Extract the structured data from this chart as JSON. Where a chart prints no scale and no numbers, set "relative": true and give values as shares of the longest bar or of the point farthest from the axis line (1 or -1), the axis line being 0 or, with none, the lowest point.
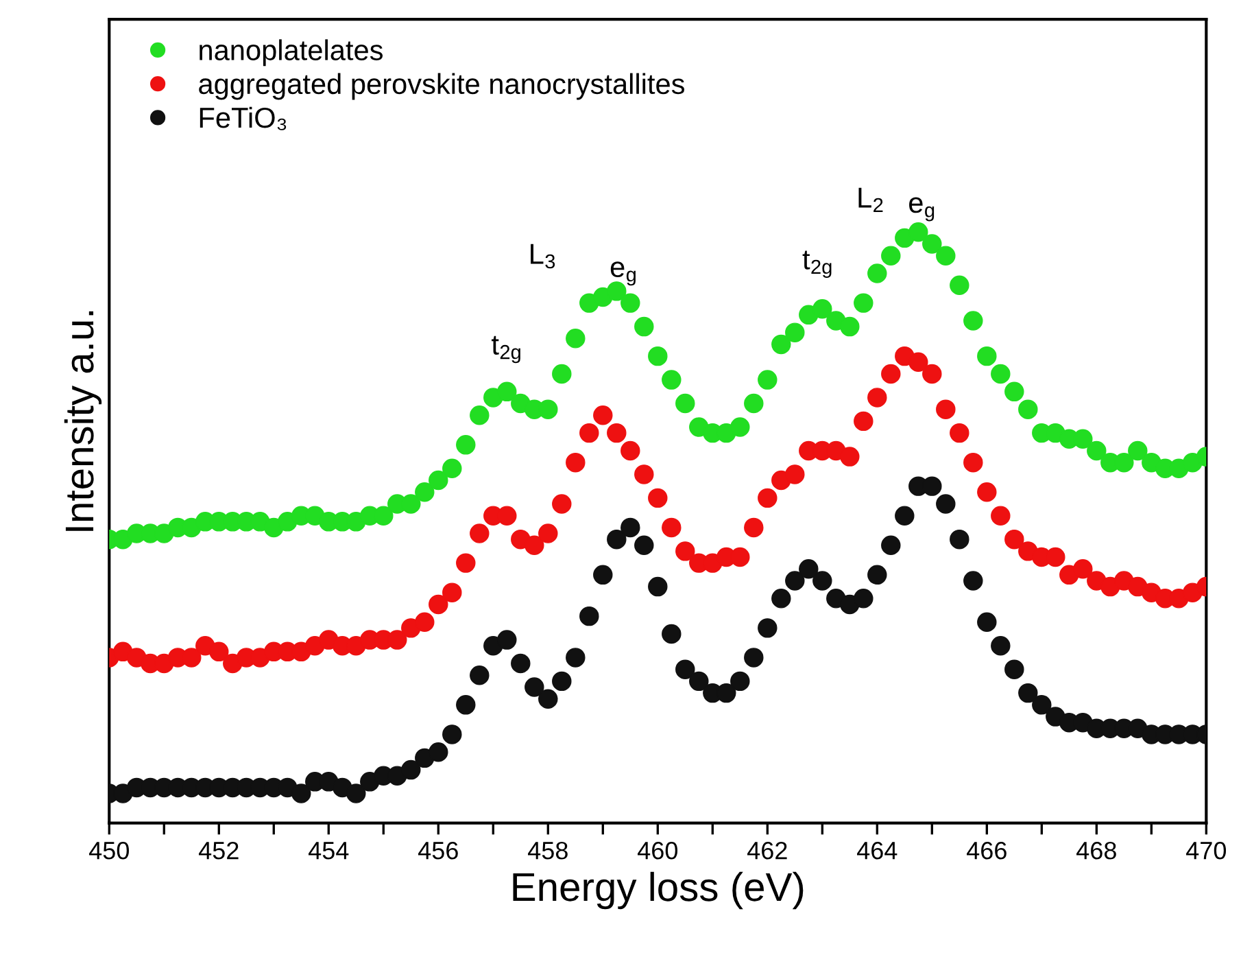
{
  "chart_data": {
    "type": "scatter",
    "relative": true,
    "xlabel": "Energy loss (eV)",
    "ylabel": "Intensity a.u.",
    "xlim": [
      450,
      470
    ],
    "xticks": [
      450,
      {
        "value": 451,
        "label": null
      },
      452,
      {
        "value": 453,
        "label": null
      },
      454,
      {
        "value": 455,
        "label": null
      },
      456,
      {
        "value": 457,
        "label": null
      },
      458,
      {
        "value": 459,
        "label": null
      },
      460,
      {
        "value": 461,
        "label": null
      },
      462,
      {
        "value": 463,
        "label": null
      },
      464,
      {
        "value": 465,
        "label": null
      },
      466,
      {
        "value": 467,
        "label": null
      },
      468,
      {
        "value": 469,
        "label": null
      },
      470
    ],
    "x": [
      450,
      450.25,
      450.5,
      450.75,
      451,
      451.25,
      451.5,
      451.75,
      452,
      452.25,
      452.5,
      452.75,
      453,
      453.25,
      453.5,
      453.75,
      454,
      454.25,
      454.5,
      454.75,
      455,
      455.25,
      455.5,
      455.75,
      456,
      456.25,
      456.5,
      456.75,
      457,
      457.25,
      457.5,
      457.75,
      458,
      458.25,
      458.5,
      458.75,
      459,
      459.25,
      459.5,
      459.75,
      460,
      460.25,
      460.5,
      460.75,
      461,
      461.25,
      461.5,
      461.75,
      462,
      462.25,
      462.5,
      462.75,
      463,
      463.25,
      463.5,
      463.75,
      464,
      464.25,
      464.5,
      464.75,
      465,
      465.25,
      465.5,
      465.75,
      466,
      466.25,
      466.5,
      466.75,
      467,
      467.25,
      467.5,
      467.75,
      468,
      468.25,
      468.5,
      468.75,
      469,
      469.25,
      469.5,
      469.75,
      470
    ],
    "marker": "circle",
    "grid": false,
    "legend": "top left",
    "series": [
      {
        "name": "nanoplatelates",
        "color": "#22dd22",
        "values": [
          0.48,
          0.48,
          0.49,
          0.49,
          0.49,
          0.5,
          0.5,
          0.51,
          0.51,
          0.51,
          0.51,
          0.51,
          0.5,
          0.51,
          0.52,
          0.52,
          0.51,
          0.51,
          0.51,
          0.52,
          0.52,
          0.54,
          0.54,
          0.56,
          0.58,
          0.6,
          0.64,
          0.69,
          0.72,
          0.73,
          0.71,
          0.7,
          0.7,
          0.76,
          0.82,
          0.88,
          0.89,
          0.9,
          0.88,
          0.84,
          0.79,
          0.75,
          0.71,
          0.67,
          0.66,
          0.66,
          0.67,
          0.71,
          0.75,
          0.81,
          0.83,
          0.86,
          0.87,
          0.85,
          0.84,
          0.88,
          0.93,
          0.96,
          0.99,
          1.0,
          0.98,
          0.96,
          0.91,
          0.85,
          0.79,
          0.76,
          0.73,
          0.7,
          0.66,
          0.66,
          0.65,
          0.65,
          0.63,
          0.61,
          0.61,
          0.63,
          0.61,
          0.6,
          0.6,
          0.61,
          0.62
        ]
      },
      {
        "name": "aggregated perovskite nanocrystallites",
        "color": "#ee1111",
        "values": [
          0.28,
          0.29,
          0.28,
          0.27,
          0.27,
          0.28,
          0.28,
          0.3,
          0.29,
          0.27,
          0.28,
          0.28,
          0.29,
          0.29,
          0.29,
          0.3,
          0.31,
          0.3,
          0.3,
          0.31,
          0.31,
          0.31,
          0.33,
          0.34,
          0.37,
          0.39,
          0.44,
          0.49,
          0.52,
          0.52,
          0.48,
          0.47,
          0.49,
          0.54,
          0.61,
          0.66,
          0.69,
          0.66,
          0.63,
          0.59,
          0.55,
          0.5,
          0.46,
          0.44,
          0.44,
          0.45,
          0.45,
          0.5,
          0.55,
          0.58,
          0.59,
          0.63,
          0.63,
          0.63,
          0.62,
          0.68,
          0.72,
          0.76,
          0.79,
          0.78,
          0.76,
          0.7,
          0.66,
          0.61,
          0.56,
          0.52,
          0.48,
          0.46,
          0.45,
          0.45,
          0.42,
          0.43,
          0.41,
          0.4,
          0.41,
          0.4,
          0.39,
          0.38,
          0.38,
          0.39,
          0.4
        ]
      },
      {
        "name": "FeTiO₃",
        "color": "#111111",
        "values": [
          0.05,
          0.05,
          0.06,
          0.06,
          0.06,
          0.06,
          0.06,
          0.06,
          0.06,
          0.06,
          0.06,
          0.06,
          0.06,
          0.06,
          0.05,
          0.07,
          0.07,
          0.06,
          0.05,
          0.07,
          0.08,
          0.08,
          0.09,
          0.11,
          0.12,
          0.15,
          0.2,
          0.25,
          0.3,
          0.31,
          0.27,
          0.23,
          0.21,
          0.24,
          0.28,
          0.35,
          0.42,
          0.48,
          0.5,
          0.47,
          0.4,
          0.32,
          0.26,
          0.24,
          0.22,
          0.22,
          0.24,
          0.28,
          0.33,
          0.38,
          0.41,
          0.43,
          0.41,
          0.38,
          0.37,
          0.38,
          0.42,
          0.47,
          0.52,
          0.57,
          0.57,
          0.54,
          0.48,
          0.41,
          0.34,
          0.3,
          0.26,
          0.22,
          0.2,
          0.18,
          0.17,
          0.17,
          0.16,
          0.16,
          0.16,
          0.16,
          0.15,
          0.15,
          0.15,
          0.15,
          0.15
        ]
      }
    ],
    "annotations": [
      "t$_{2g}$",
      "L$_{3}$",
      "e$_{g}$",
      "t$_{2g}$",
      "L$_{2}$",
      "e$_{g}$"
    ]
  }
}
